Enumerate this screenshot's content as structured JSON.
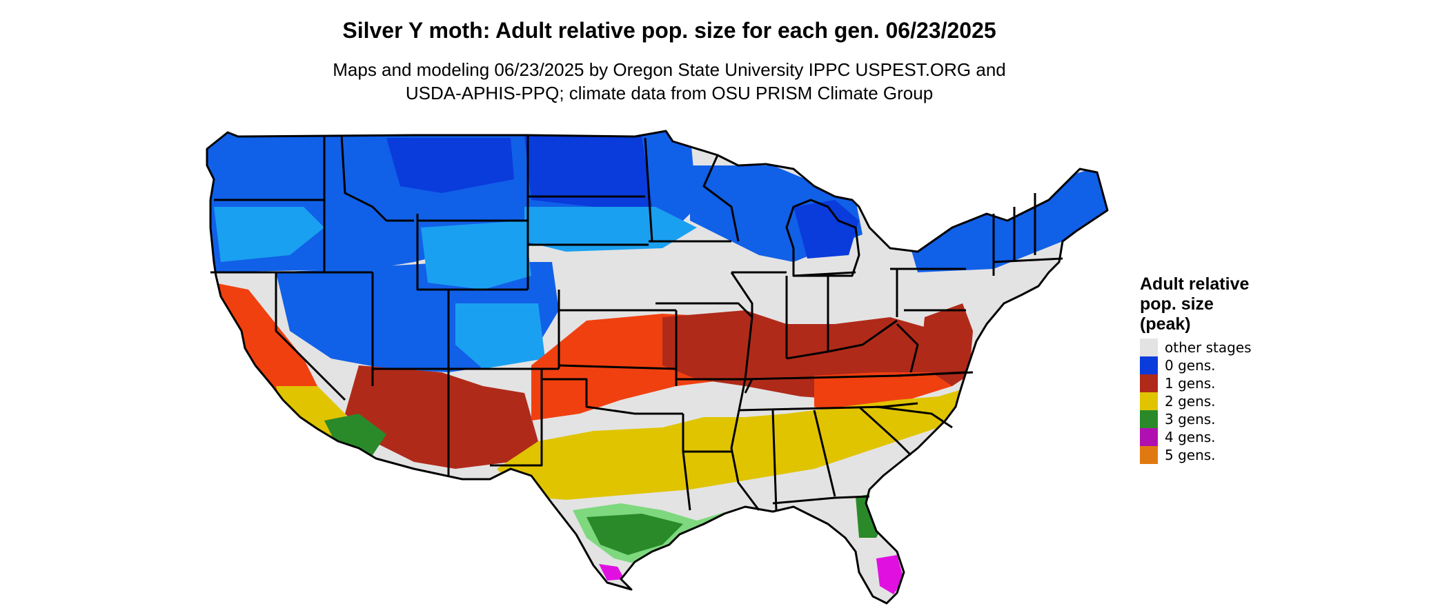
{
  "title": "Silver Y moth: Adult relative pop. size for each gen. 06/23/2025",
  "subtitle_lines": [
    "Maps and modeling 06/23/2025 by Oregon State University IPPC USPEST.ORG and",
    "USDA-APHIS-PPQ; climate data from OSU PRISM Climate Group"
  ],
  "legend": {
    "title_lines": [
      "Adult relative",
      "pop. size",
      "(peak)"
    ],
    "items": [
      {
        "label": "other stages",
        "color": "#e3e3e3"
      },
      {
        "label": "0 gens.",
        "color": "#0a3bdb"
      },
      {
        "label": "1 gens.",
        "color": "#b02a1a"
      },
      {
        "label": "2 gens.",
        "color": "#e0c400"
      },
      {
        "label": "3 gens.",
        "color": "#2a8a2a"
      },
      {
        "label": "4 gens.",
        "color": "#b010b0"
      },
      {
        "label": "5 gens.",
        "color": "#e07a10"
      }
    ]
  },
  "map_colors": {
    "other_stages": "#e3e3e3",
    "gen0_dark": "#0a3bdb",
    "gen0_mid": "#1160e8",
    "gen0_light": "#1aa0f0",
    "gen1_bright": "#f04010",
    "gen1_dark": "#b02a1a",
    "gen2": "#e0c400",
    "gen3": "#2a8a2a",
    "gen3_light": "#7ed87e",
    "gen4": "#e010e0",
    "border": "#000000"
  }
}
